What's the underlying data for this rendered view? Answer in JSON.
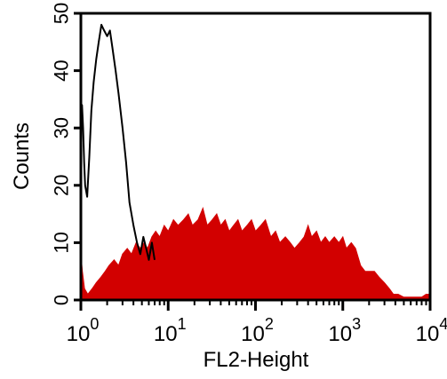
{
  "chart_data": {
    "type": "histogram",
    "title": "",
    "xlabel": "FL2-Height",
    "ylabel": "Counts",
    "xscale": "log",
    "xlim": [
      1,
      10000
    ],
    "ylim": [
      0,
      50
    ],
    "grid": false,
    "legend": "none",
    "x_ticks": [
      {
        "base": "10",
        "exp": "0"
      },
      {
        "base": "10",
        "exp": "1"
      },
      {
        "base": "10",
        "exp": "2"
      },
      {
        "base": "10",
        "exp": "3"
      },
      {
        "base": "10",
        "exp": "4"
      }
    ],
    "y_ticks": [
      "0",
      "10",
      "20",
      "30",
      "40",
      "50"
    ],
    "y_tick_values": [
      0,
      10,
      20,
      30,
      40,
      50
    ],
    "series": [
      {
        "style": "filled",
        "color": "#d20000",
        "points": [
          [
            1.0,
            8
          ],
          [
            1.04,
            5
          ],
          [
            1.1,
            2
          ],
          [
            1.2,
            1
          ],
          [
            1.35,
            2
          ],
          [
            1.5,
            3
          ],
          [
            1.7,
            4
          ],
          [
            1.9,
            5
          ],
          [
            2.1,
            6
          ],
          [
            2.4,
            7
          ],
          [
            2.7,
            6
          ],
          [
            3.0,
            8
          ],
          [
            3.4,
            9
          ],
          [
            3.8,
            8
          ],
          [
            4.3,
            10
          ],
          [
            4.8,
            9
          ],
          [
            5.3,
            10
          ],
          [
            5.8,
            9
          ],
          [
            6.5,
            11
          ],
          [
            7.2,
            12
          ],
          [
            8.0,
            11
          ],
          [
            9.0,
            13
          ],
          [
            10,
            12
          ],
          [
            11.5,
            14
          ],
          [
            13,
            13
          ],
          [
            15,
            14
          ],
          [
            17,
            15
          ],
          [
            19,
            13
          ],
          [
            22,
            14
          ],
          [
            25,
            16
          ],
          [
            28,
            13
          ],
          [
            32,
            14
          ],
          [
            36,
            15
          ],
          [
            40,
            13
          ],
          [
            45,
            14
          ],
          [
            50,
            12
          ],
          [
            56,
            13
          ],
          [
            63,
            14
          ],
          [
            70,
            12
          ],
          [
            80,
            13
          ],
          [
            90,
            14
          ],
          [
            100,
            12
          ],
          [
            115,
            13
          ],
          [
            130,
            14
          ],
          [
            150,
            11
          ],
          [
            170,
            12
          ],
          [
            190,
            10
          ],
          [
            220,
            11
          ],
          [
            250,
            10
          ],
          [
            280,
            9
          ],
          [
            320,
            10
          ],
          [
            360,
            11
          ],
          [
            400,
            13
          ],
          [
            440,
            11
          ],
          [
            500,
            12
          ],
          [
            560,
            10
          ],
          [
            630,
            11
          ],
          [
            700,
            10
          ],
          [
            800,
            11
          ],
          [
            900,
            10
          ],
          [
            1000,
            11
          ],
          [
            1100,
            9
          ],
          [
            1250,
            10
          ],
          [
            1400,
            9
          ],
          [
            1600,
            6
          ],
          [
            1800,
            5
          ],
          [
            2000,
            5
          ],
          [
            2300,
            5
          ],
          [
            2600,
            4
          ],
          [
            3000,
            3
          ],
          [
            3400,
            2
          ],
          [
            3800,
            1
          ],
          [
            4300,
            1
          ],
          [
            5000,
            0.5
          ],
          [
            6000,
            0.5
          ],
          [
            7000,
            0.5
          ],
          [
            8000,
            0.5
          ],
          [
            9000,
            1
          ],
          [
            10000,
            1
          ]
        ]
      },
      {
        "style": "line",
        "color": "#000000",
        "points": [
          [
            1.0,
            28
          ],
          [
            1.03,
            34
          ],
          [
            1.06,
            30
          ],
          [
            1.09,
            24
          ],
          [
            1.12,
            20
          ],
          [
            1.18,
            18
          ],
          [
            1.25,
            25
          ],
          [
            1.32,
            33
          ],
          [
            1.4,
            38
          ],
          [
            1.5,
            42
          ],
          [
            1.6,
            45
          ],
          [
            1.72,
            48
          ],
          [
            1.85,
            47
          ],
          [
            2.0,
            46
          ],
          [
            2.15,
            47
          ],
          [
            2.3,
            44
          ],
          [
            2.5,
            40
          ],
          [
            2.7,
            36
          ],
          [
            3.0,
            30
          ],
          [
            3.3,
            24
          ],
          [
            3.6,
            17
          ],
          [
            4.0,
            13
          ],
          [
            4.4,
            10
          ],
          [
            4.8,
            8
          ],
          [
            5.2,
            11
          ],
          [
            5.6,
            9
          ],
          [
            6.0,
            7
          ],
          [
            6.5,
            10
          ],
          [
            7.0,
            7
          ]
        ]
      }
    ]
  }
}
